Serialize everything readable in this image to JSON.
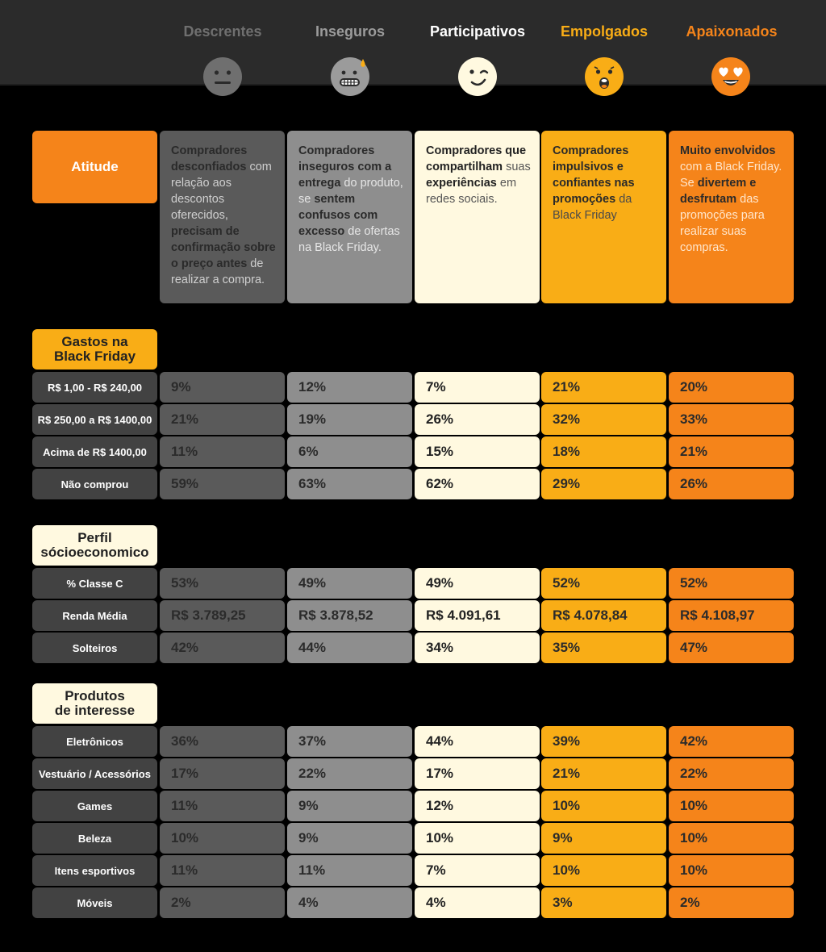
{
  "personas": [
    {
      "label": "Descrentes",
      "color": "#6f6f6f",
      "emoji": "neutral-face-icon"
    },
    {
      "label": "Inseguros",
      "color": "#9b9b9b",
      "emoji": "grimacing-sweat-face-icon"
    },
    {
      "label": "Participativos",
      "color": "#ffffff",
      "emoji": "winking-face-icon"
    },
    {
      "label": "Empolgados",
      "color": "#f9ad16",
      "emoji": "surprised-face-icon"
    },
    {
      "label": "Apaixonados",
      "color": "#f5841a",
      "emoji": "heart-eyes-face-icon"
    }
  ],
  "attitude": {
    "label": "Atitude",
    "descriptions": [
      [
        [
          "b",
          "Compradores desconfiados"
        ],
        [
          "t",
          " com relação aos descontos oferecidos, "
        ],
        [
          "b",
          "precisam de confirmação sobre o preço antes"
        ],
        [
          "t",
          " de realizar a compra."
        ]
      ],
      [
        [
          "b",
          "Compradores inseguros com a entrega"
        ],
        [
          "t",
          " do produto, se "
        ],
        [
          "b",
          "sentem confusos com excesso"
        ],
        [
          "t",
          " de ofertas na Black Friday."
        ]
      ],
      [
        [
          "b",
          "Compradores que compartilham"
        ],
        [
          "t",
          " suas "
        ],
        [
          "b",
          "experiências"
        ],
        [
          "t",
          " em redes sociais."
        ]
      ],
      [
        [
          "b",
          "Compradores impulsivos e confiantes nas promoções"
        ],
        [
          "t",
          " da Black Friday"
        ]
      ],
      [
        [
          "b",
          "Muito envolvidos"
        ],
        [
          "t",
          " com a Black Friday. Se "
        ],
        [
          "b",
          "divertem e desfrutam"
        ],
        [
          "t",
          " das promoções para realizar suas compras."
        ]
      ]
    ]
  },
  "sections": [
    {
      "title_lines": [
        "Gastos na",
        "Black Friday"
      ],
      "bg": "#f9ad16",
      "rows": [
        {
          "label": "R$ 1,00 - R$ 240,00",
          "values": [
            "9%",
            "12%",
            "7%",
            "21%",
            "20%"
          ]
        },
        {
          "label": "R$ 250,00 a R$ 1400,00",
          "values": [
            "21%",
            "19%",
            "26%",
            "32%",
            "33%"
          ]
        },
        {
          "label": "Acima de R$ 1400,00",
          "values": [
            "11%",
            "6%",
            "15%",
            "18%",
            "21%"
          ]
        },
        {
          "label": "Não comprou",
          "values": [
            "59%",
            "63%",
            "62%",
            "29%",
            "26%"
          ]
        }
      ]
    },
    {
      "title_lines": [
        "Perfil",
        "sócioeconomico"
      ],
      "bg": "#fff9e0",
      "rows": [
        {
          "label": "% Classe C",
          "values": [
            "53%",
            "49%",
            "49%",
            "52%",
            "52%"
          ]
        },
        {
          "label": "Renda Média",
          "values": [
            "R$ 3.789,25",
            "R$ 3.878,52",
            "R$ 4.091,61",
            "R$ 4.078,84",
            "R$ 4.108,97"
          ]
        },
        {
          "label": "Solteiros",
          "values": [
            "42%",
            "44%",
            "34%",
            "35%",
            "47%"
          ]
        }
      ]
    },
    {
      "title_lines": [
        "Produtos",
        "de interesse"
      ],
      "bg": "#fff9e0",
      "rows": [
        {
          "label": "Eletrônicos",
          "values": [
            "36%",
            "37%",
            "44%",
            "39%",
            "42%"
          ]
        },
        {
          "label": "Vestuário / Acessórios",
          "values": [
            "17%",
            "22%",
            "17%",
            "21%",
            "22%"
          ]
        },
        {
          "label": "Games",
          "values": [
            "11%",
            "9%",
            "12%",
            "10%",
            "10%"
          ]
        },
        {
          "label": "Beleza",
          "values": [
            "10%",
            "9%",
            "10%",
            "9%",
            "10%"
          ]
        },
        {
          "label": "Itens esportivos",
          "values": [
            "11%",
            "11%",
            "7%",
            "10%",
            "10%"
          ]
        },
        {
          "label": "Móveis",
          "values": [
            "2%",
            "4%",
            "4%",
            "3%",
            "2%"
          ]
        }
      ]
    }
  ]
}
